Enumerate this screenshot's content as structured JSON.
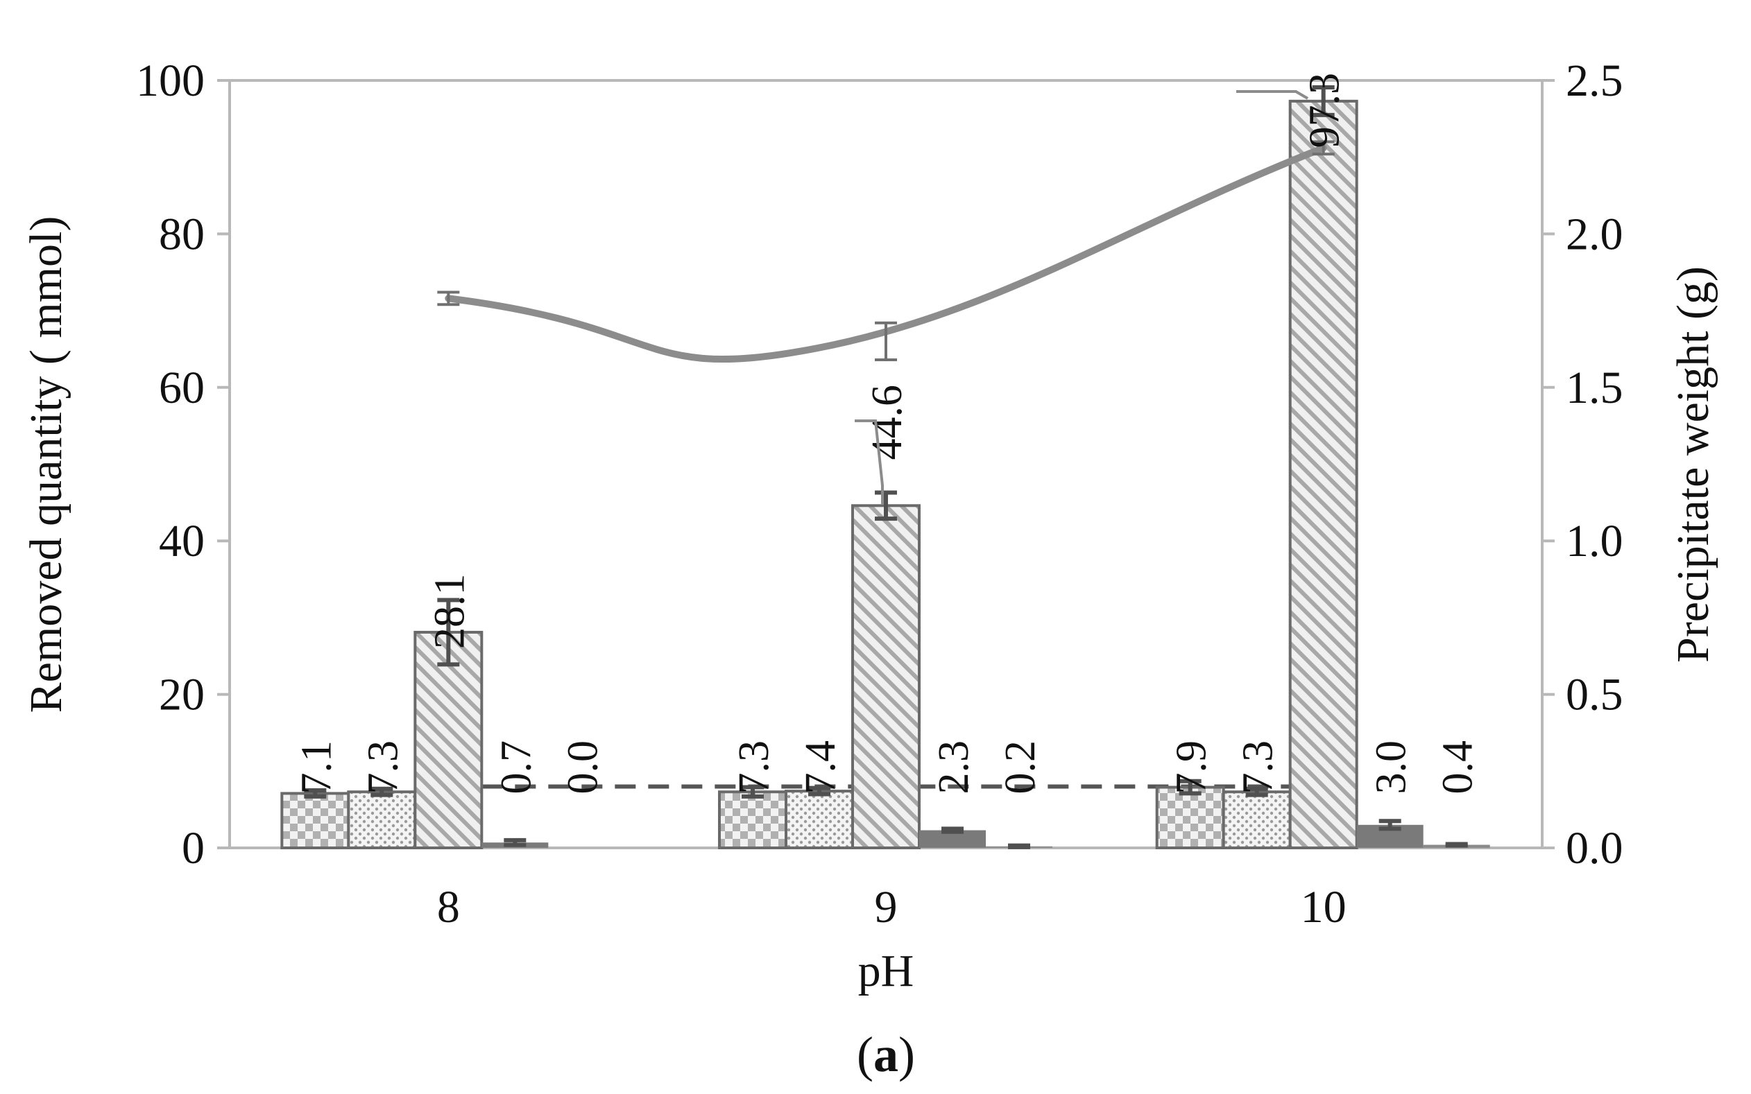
{
  "chart_data": {
    "type": "bar",
    "panel_label": "a",
    "xlabel": "pH",
    "ylabel": "Removed quantity ( mmol)",
    "y2label": "Precipitate weight (g)",
    "categories": [
      "8",
      "9",
      "10"
    ],
    "ylim": [
      0,
      100
    ],
    "y2lim": [
      0.0,
      2.5
    ],
    "yticks": [
      "0",
      "20",
      "40",
      "60",
      "80",
      "100"
    ],
    "y2ticks": [
      "0.0",
      "0.5",
      "1.0",
      "1.5",
      "2.0",
      "2.5"
    ],
    "series": [
      {
        "values": [
          7.1,
          7.3,
          7.9
        ],
        "errors": [
          0.4,
          0.6,
          0.8
        ],
        "labels": [
          "7.1",
          "7.3",
          "7.9"
        ],
        "pattern": "checker",
        "fill": "#cfcfcf"
      },
      {
        "values": [
          7.3,
          7.4,
          7.3
        ],
        "errors": [
          0.4,
          0.4,
          0.4
        ],
        "labels": [
          "7.3",
          "7.4",
          "7.3"
        ],
        "pattern": "dots",
        "fill": "#dcdcdc"
      },
      {
        "values": [
          28.1,
          44.6,
          97.3
        ],
        "errors": [
          4.2,
          1.7,
          1.8
        ],
        "labels": [
          "28.1",
          "44.6",
          "97.3"
        ],
        "pattern": "diagonal",
        "fill": "#d6d6d6"
      },
      {
        "values": [
          0.7,
          2.3,
          3.0
        ],
        "errors": [
          0.3,
          0.2,
          0.5
        ],
        "labels": [
          "0.7",
          "2.3",
          "3.0"
        ],
        "pattern": "solid",
        "fill": "#7a7a7a"
      },
      {
        "values": [
          0.0,
          0.2,
          0.4
        ],
        "errors": [
          0.0,
          0.1,
          0.1
        ],
        "labels": [
          "0.0",
          "0.2",
          "0.4"
        ],
        "pattern": "solid",
        "fill": "#8a8a8a"
      }
    ],
    "line": {
      "axis": "y2",
      "values": [
        1.79,
        1.65,
        2.28
      ],
      "errors": [
        0.02,
        0.06,
        0.02
      ],
      "color": "#8c8c8c"
    },
    "reference_line": {
      "value": 8.0,
      "style": "dashed",
      "color": "#555555"
    },
    "grid": false,
    "legend": "none"
  }
}
